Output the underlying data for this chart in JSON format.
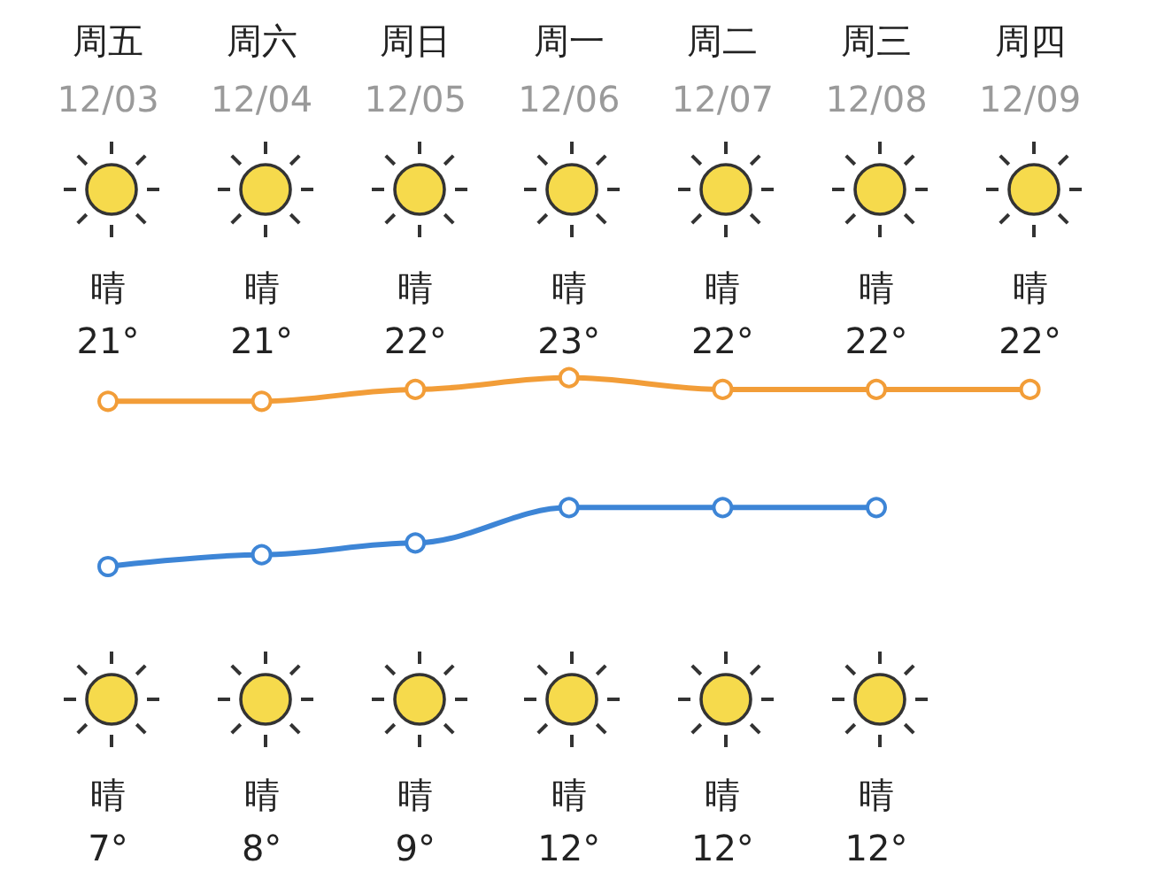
{
  "chart_data": {
    "type": "line",
    "categories": [
      "周五\n12/03",
      "周六\n12/04",
      "周日\n12/05",
      "周一\n12/06",
      "周二\n12/07",
      "周三\n12/08",
      "周四\n12/09"
    ],
    "series": [
      {
        "color": "#f29d38",
        "values": [
          21,
          21,
          22,
          23,
          22,
          22,
          22
        ],
        "value_labels": [
          "晴\n21°",
          "晴\n21°",
          "晴\n22°",
          "晴\n23°",
          "晴\n22°",
          "晴\n22°",
          "晴\n22°"
        ]
      },
      {
        "color": "#3d85d6",
        "values": [
          7,
          8,
          9,
          12,
          12,
          12,
          null
        ],
        "value_labels": [
          "晴\n7°",
          "晴\n8°",
          "晴\n9°",
          "晴\n12°",
          "晴\n12°",
          "晴\n12°",
          null
        ]
      }
    ],
    "marker": "circle",
    "line_style": "solid",
    "tick_labels": "x"
  }
}
